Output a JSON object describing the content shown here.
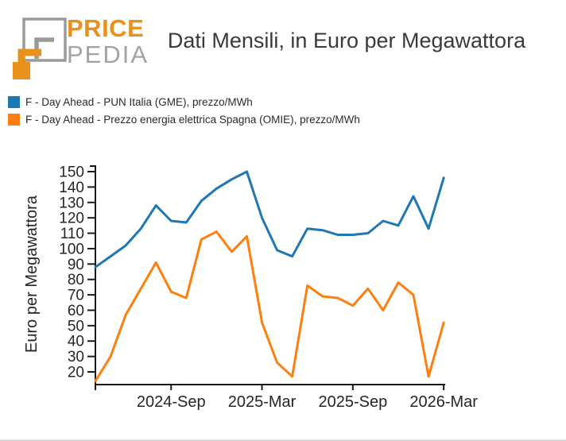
{
  "header": {
    "logo": {
      "line1": "PRICE",
      "line2": "PEDIA"
    },
    "title": "Dati Mensili, in Euro per Megawattora"
  },
  "legend": [
    {
      "label": "F - Day Ahead - PUN Italia (GME), prezzo/MWh",
      "color": "#1f77b4"
    },
    {
      "label": "F - Day Ahead - Prezzo energia elettrica Spagna (OMIE), prezzo/MWh",
      "color": "#ff7f0e"
    }
  ],
  "chart_data": {
    "type": "line",
    "title": "Dati Mensili, in Euro per Megawattora",
    "xlabel": "",
    "ylabel": "Euro per Megawattora",
    "ylim": [
      12,
      154
    ],
    "grid": false,
    "legend_position": "top-left",
    "y_ticks": [
      20,
      30,
      40,
      50,
      60,
      70,
      80,
      90,
      100,
      110,
      120,
      130,
      140,
      150
    ],
    "x_tick_labels": [
      {
        "label": "2024-Sep",
        "index": 5
      },
      {
        "label": "2025-Mar",
        "index": 11
      },
      {
        "label": "2025-Sep",
        "index": 17
      },
      {
        "label": "2026-Mar",
        "index": 23
      }
    ],
    "categories": [
      "2024-04",
      "2024-05",
      "2024-06",
      "2024-07",
      "2024-08",
      "2024-09",
      "2024-10",
      "2024-11",
      "2024-12",
      "2025-01",
      "2025-02",
      "2025-03",
      "2025-04",
      "2025-05",
      "2025-06",
      "2025-07",
      "2025-08",
      "2025-09",
      "2025-10",
      "2025-11",
      "2025-12",
      "2026-01",
      "2026-02",
      "2026-03"
    ],
    "series": [
      {
        "name": "F - Day Ahead - PUN Italia (GME), prezzo/MWh",
        "color": "#1f77b4",
        "values": [
          88,
          95,
          102,
          113,
          128,
          118,
          117,
          131,
          139,
          145,
          150,
          120,
          99,
          95,
          113,
          112,
          109,
          109,
          110,
          118,
          115,
          134,
          113,
          146
        ]
      },
      {
        "name": "F - Day Ahead - Prezzo energia elettrica Spagna (OMIE), prezzo/MWh",
        "color": "#ff7f0e",
        "values": [
          14,
          30,
          57,
          74,
          91,
          72,
          68,
          106,
          111,
          98,
          108,
          52,
          26,
          17,
          76,
          69,
          68,
          63,
          74,
          60,
          78,
          70,
          17,
          52
        ]
      }
    ]
  },
  "colors": {
    "logo_orange": "#e8911c",
    "logo_gray": "#9a9a9a",
    "axis": "#1a1a1a",
    "title_text": "#3a3a3a"
  }
}
